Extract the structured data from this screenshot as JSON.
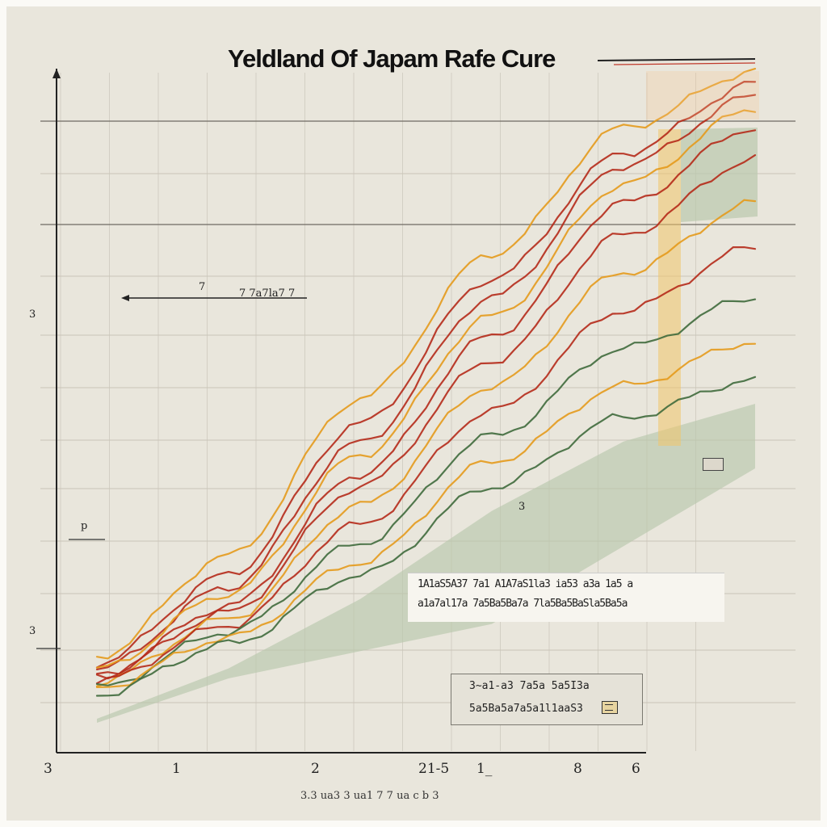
{
  "chart_data": {
    "type": "line",
    "title": "Yeldland Of Japam Rafe Cure",
    "x_tick_labels": [
      "3",
      "1",
      "2",
      "21-5",
      "1_",
      "8",
      "6"
    ],
    "x_axis_caption": "3.3 ua3 3 ua1 7 7 ua c b 3",
    "side_labels": [
      "p",
      "3",
      "3",
      "7"
    ],
    "annotations": [
      "7 7a7la7 7",
      "3"
    ],
    "note": {
      "lines": [
        "1A1aS5A37 7a1 A1A7aS1la3 ia53 a3a 1a5 a",
        "a1a7al17a 7a5Ba5Ba7a 7la5Ba5BaSla5Ba5a"
      ]
    },
    "legend": {
      "rows": [
        "3~a1-a3 7a5a 5a5I3a",
        "5a5Ba5a7a5a1l1aaS3"
      ],
      "icon": "document-icon"
    },
    "colors": {
      "orange": "#e49a1c",
      "red": "#b52a1a",
      "green": "#3f6a3c",
      "fill": "#b9c8ac",
      "background": "#e9e6dc"
    },
    "series": [
      {
        "values": [
          0.06,
          0.22,
          0.47,
          0.7,
          0.9,
          0.99
        ]
      },
      {
        "values": [
          0.05,
          0.19,
          0.43,
          0.66,
          0.86,
          0.97
        ]
      },
      {
        "values": [
          0.04,
          0.17,
          0.4,
          0.63,
          0.84,
          0.95
        ]
      },
      {
        "values": [
          0.04,
          0.16,
          0.38,
          0.6,
          0.81,
          0.93
        ]
      },
      {
        "values": [
          0.03,
          0.14,
          0.35,
          0.57,
          0.78,
          0.9
        ]
      },
      {
        "values": [
          0.03,
          0.13,
          0.33,
          0.53,
          0.73,
          0.85
        ]
      },
      {
        "values": [
          0.02,
          0.12,
          0.3,
          0.49,
          0.67,
          0.78
        ]
      },
      {
        "values": [
          0.02,
          0.11,
          0.27,
          0.45,
          0.61,
          0.71
        ]
      },
      {
        "values": [
          0.01,
          0.1,
          0.24,
          0.41,
          0.55,
          0.63
        ]
      },
      {
        "values": [
          0.01,
          0.09,
          0.21,
          0.37,
          0.49,
          0.56
        ]
      },
      {
        "values": [
          0.0,
          0.08,
          0.19,
          0.33,
          0.44,
          0.5
        ]
      }
    ]
  }
}
